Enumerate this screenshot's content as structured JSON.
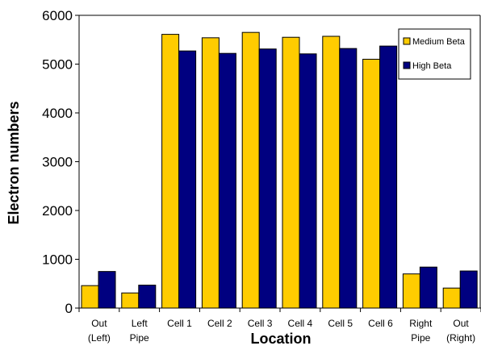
{
  "chart_data": {
    "type": "bar",
    "xlabel": "Location",
    "ylabel": "Electron numbers",
    "ylim": [
      0,
      6000
    ],
    "yticks": [
      "0",
      "1000",
      "2000",
      "3000",
      "4000",
      "5000",
      "6000"
    ],
    "categories": [
      [
        "Out",
        "(Left)"
      ],
      [
        "Left",
        "Pipe"
      ],
      [
        "Cell 1"
      ],
      [
        "Cell 2"
      ],
      [
        "Cell 3"
      ],
      [
        "Cell 4"
      ],
      [
        "Cell 5"
      ],
      [
        "Cell 6"
      ],
      [
        "Right",
        "Pipe"
      ],
      [
        "Out",
        "(Right)"
      ]
    ],
    "series": [
      {
        "name": "Medium Beta",
        "color": "#FFCC00",
        "values": [
          460,
          310,
          5610,
          5540,
          5650,
          5550,
          5570,
          5100,
          700,
          410
        ]
      },
      {
        "name": "High Beta",
        "color": "#000080",
        "values": [
          750,
          470,
          5270,
          5220,
          5310,
          5210,
          5320,
          5370,
          840,
          760
        ]
      }
    ],
    "legend_position": "top-right",
    "grid": false
  }
}
